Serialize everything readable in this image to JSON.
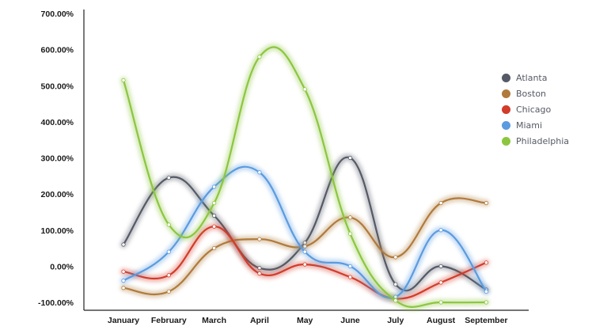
{
  "chart_data": {
    "type": "line",
    "title": "",
    "xlabel": "",
    "ylabel": "",
    "categories": [
      "January",
      "February",
      "March",
      "April",
      "May",
      "June",
      "July",
      "August",
      "September"
    ],
    "y_ticks": [
      "700.00%",
      "600.00%",
      "500.00%",
      "400.00%",
      "300.00%",
      "200.00%",
      "100.00%",
      "0.00%",
      "-100.00%"
    ],
    "ylim": [
      -100,
      700
    ],
    "grid": false,
    "smooth": true,
    "legend_position": "right",
    "series": [
      {
        "name": "Atlanta",
        "color": "#555a66",
        "values": [
          60,
          245,
          140,
          -5,
          65,
          300,
          -50,
          0,
          -65
        ]
      },
      {
        "name": "Boston",
        "color": "#b07a3c",
        "values": [
          -60,
          -70,
          50,
          75,
          55,
          135,
          25,
          175,
          175
        ]
      },
      {
        "name": "Chicago",
        "color": "#d23c2a",
        "values": [
          -15,
          -25,
          110,
          -20,
          5,
          -30,
          -90,
          -45,
          10
        ]
      },
      {
        "name": "Miami",
        "color": "#5b9be0",
        "values": [
          -40,
          40,
          220,
          260,
          40,
          0,
          -85,
          100,
          -70
        ]
      },
      {
        "name": "Philadelphia",
        "color": "#8cc63f",
        "values": [
          515,
          115,
          175,
          580,
          490,
          90,
          -95,
          -100,
          -100
        ]
      }
    ]
  }
}
